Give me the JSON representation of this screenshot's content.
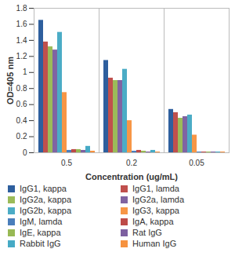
{
  "chart_data": {
    "type": "bar",
    "x_label": "Concentration (ug/mL)",
    "y_label": "OD=405 nm",
    "categories": [
      "0.5",
      "0.2",
      "0.05"
    ],
    "ylim": [
      0,
      1.8
    ],
    "yticks": [
      0,
      0.2,
      0.4,
      0.6,
      0.8,
      1,
      1.2,
      1.4,
      1.6,
      1.8
    ],
    "legend": "bottom",
    "series": [
      {
        "name": "IgG1, kappa",
        "color": "#2e5f9e",
        "values": [
          1.65,
          1.15,
          0.54
        ]
      },
      {
        "name": "IgG1, lamda",
        "color": "#c0504d",
        "values": [
          1.38,
          0.93,
          0.5
        ]
      },
      {
        "name": "IgG2a, kappa",
        "color": "#9bbb59",
        "values": [
          1.32,
          0.9,
          0.43
        ]
      },
      {
        "name": "IgG2a, lamda",
        "color": "#8064a2",
        "values": [
          1.28,
          0.9,
          0.45
        ]
      },
      {
        "name": "IgG2b, kappa",
        "color": "#4bacc6",
        "values": [
          1.5,
          1.04,
          0.47
        ]
      },
      {
        "name": "IgG3, kappa",
        "color": "#f79646",
        "values": [
          0.75,
          0.4,
          0.22
        ]
      },
      {
        "name": "IgM, lamda",
        "color": "#4a7ebb",
        "values": [
          0.03,
          0.02,
          0.01
        ]
      },
      {
        "name": "IgA, kappa",
        "color": "#be4b48",
        "values": [
          0.04,
          0.03,
          0.01
        ]
      },
      {
        "name": "IgE, kappa",
        "color": "#98b954",
        "values": [
          0.04,
          0.02,
          0.01
        ]
      },
      {
        "name": "Rat IgG",
        "color": "#7d60a0",
        "values": [
          0.03,
          0.01,
          0.01
        ]
      },
      {
        "name": "Rabbit IgG",
        "color": "#46aac5",
        "values": [
          0.08,
          0.03,
          0.01
        ]
      },
      {
        "name": "Human IgG",
        "color": "#f69240",
        "values": [
          0.02,
          0.01,
          0.01
        ]
      }
    ]
  }
}
